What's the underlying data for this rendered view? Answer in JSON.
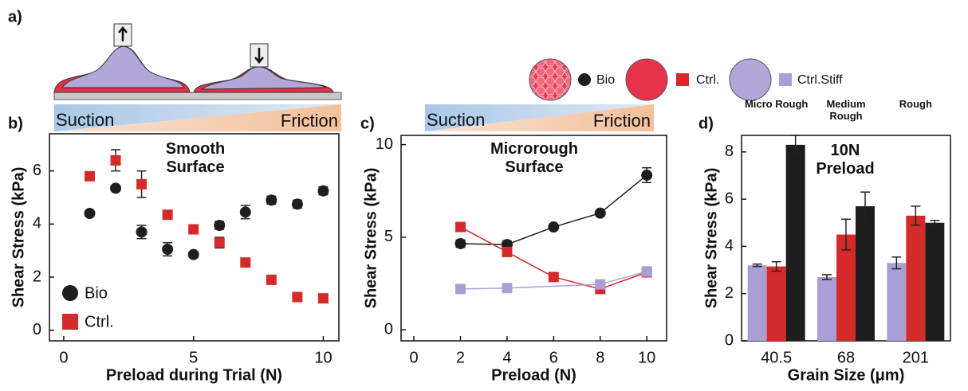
{
  "panel_labels": [
    "a)",
    "b)",
    "c)",
    "d)"
  ],
  "gradient_bars": [
    {
      "left": "Suction",
      "right": "Friction"
    },
    {
      "left": "Suction",
      "right": "Friction"
    }
  ],
  "chart_data": [
    {
      "type": "scatter",
      "title": "Smooth Surface",
      "xlabel": "Preload during Trial (N)",
      "ylabel": "Shear Stress (kPa)",
      "x": [
        1,
        2,
        3,
        4,
        5,
        6,
        7,
        8,
        9,
        10
      ],
      "xlim": [
        -0.55,
        10.6
      ],
      "xticks": [
        0,
        5,
        10
      ],
      "ylim": [
        -0.4,
        7.4
      ],
      "yticks": [
        0,
        2,
        4,
        6
      ],
      "legend": "lower left",
      "series": [
        {
          "name": "Bio",
          "color": "#1e1e1e",
          "marker": "circle",
          "values": [
            4.4,
            5.35,
            3.7,
            3.05,
            2.85,
            3.95,
            4.45,
            4.9,
            4.75,
            5.25
          ],
          "errors": [
            0.1,
            0.1,
            0.25,
            0.25,
            0.1,
            0.15,
            0.25,
            0.15,
            0.15,
            0.15
          ]
        },
        {
          "name": "Ctrl.",
          "color": "#d42a2a",
          "marker": "square",
          "values": [
            5.8,
            6.4,
            5.5,
            4.35,
            3.8,
            3.3,
            2.55,
            1.9,
            1.25,
            1.2
          ],
          "errors": [
            0.1,
            0.4,
            0.5,
            0.1,
            0.1,
            0.2,
            0.1,
            0.1,
            0.1,
            0.1
          ]
        }
      ]
    },
    {
      "type": "line",
      "title": "Microrough Surface",
      "xlabel": "Preload (N)",
      "ylabel": "Shear Stress (kPa)",
      "x": [
        2,
        4,
        6,
        8,
        10
      ],
      "xlim": [
        -0.55,
        10.85
      ],
      "xticks": [
        0,
        2,
        4,
        6,
        8,
        10
      ],
      "ylim": [
        -0.6,
        10.5
      ],
      "yticks": [
        0,
        5,
        10
      ],
      "series": [
        {
          "name": "Bio",
          "color": "#1e1e1e",
          "marker": "circle",
          "values": [
            4.65,
            4.6,
            5.55,
            6.3,
            8.35
          ],
          "errors": [
            0.2,
            0.2,
            0.1,
            0.1,
            0.4
          ]
        },
        {
          "name": "Ctrl.",
          "color": "#d42a2a",
          "marker": "square",
          "values": [
            5.55,
            4.2,
            2.85,
            2.2,
            3.1
          ],
          "errors": [
            0.15,
            0.15,
            0.1,
            0.2,
            0.2
          ]
        },
        {
          "name": "Ctrl.Stiff",
          "color": "#a99fd6",
          "marker": "square",
          "x": [
            2,
            4,
            8,
            10
          ],
          "values": [
            2.2,
            2.25,
            2.45,
            3.15
          ],
          "errors": [
            0.12,
            0.12,
            0.12,
            0.15
          ]
        }
      ]
    },
    {
      "type": "bar",
      "title": "10N Preload",
      "xlabel": "Grain Size (μm)",
      "ylabel": "Shear Stress (kPa)",
      "categories": [
        "40.5",
        "68",
        "201"
      ],
      "group_labels": [
        "Micro Rough",
        "Medium Rough",
        "Rough"
      ],
      "ylim": [
        0,
        8.7
      ],
      "yticks": [
        0,
        2,
        4,
        6,
        8
      ],
      "series": [
        {
          "color": "#a99fd6",
          "values": [
            3.2,
            2.7,
            3.3
          ],
          "errors": [
            0.05,
            0.1,
            0.25
          ]
        },
        {
          "color": "#d42a2a",
          "values": [
            3.15,
            4.5,
            5.3
          ],
          "errors": [
            0.2,
            0.65,
            0.4
          ]
        },
        {
          "color": "#1e1e1e",
          "values": [
            8.3,
            5.7,
            5.0
          ],
          "errors": [
            0.4,
            0.6,
            0.1
          ]
        }
      ]
    }
  ]
}
